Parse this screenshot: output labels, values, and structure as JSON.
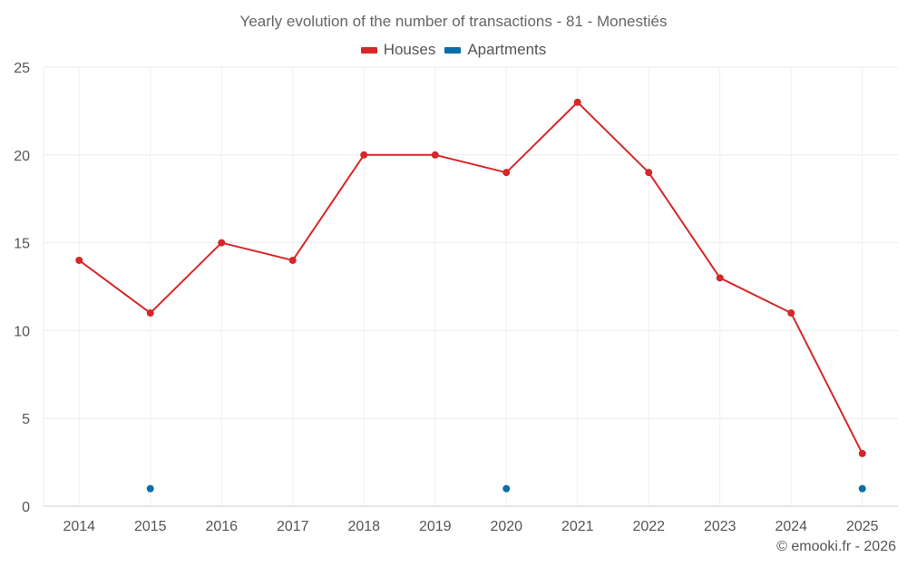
{
  "chart_data": {
    "type": "line",
    "title": "Yearly evolution of the number of transactions - 81 - Monestiés",
    "categories": [
      "2014",
      "2015",
      "2016",
      "2017",
      "2018",
      "2019",
      "2020",
      "2021",
      "2022",
      "2023",
      "2024",
      "2025"
    ],
    "series": [
      {
        "name": "Houses",
        "color": "#d62728",
        "values": [
          14,
          11,
          15,
          14,
          20,
          20,
          19,
          23,
          19,
          13,
          11,
          3
        ]
      },
      {
        "name": "Apartments",
        "color": "#0a6ea8",
        "values": [
          null,
          1,
          null,
          null,
          null,
          null,
          1,
          null,
          null,
          null,
          null,
          1
        ]
      }
    ],
    "ylim": [
      0,
      25
    ],
    "yticks": [
      0,
      5,
      10,
      15,
      20,
      25
    ],
    "xlabel": "",
    "ylabel": "",
    "grid": true,
    "legend_position": "top-center"
  },
  "credit": "© emooki.fr - 2026"
}
